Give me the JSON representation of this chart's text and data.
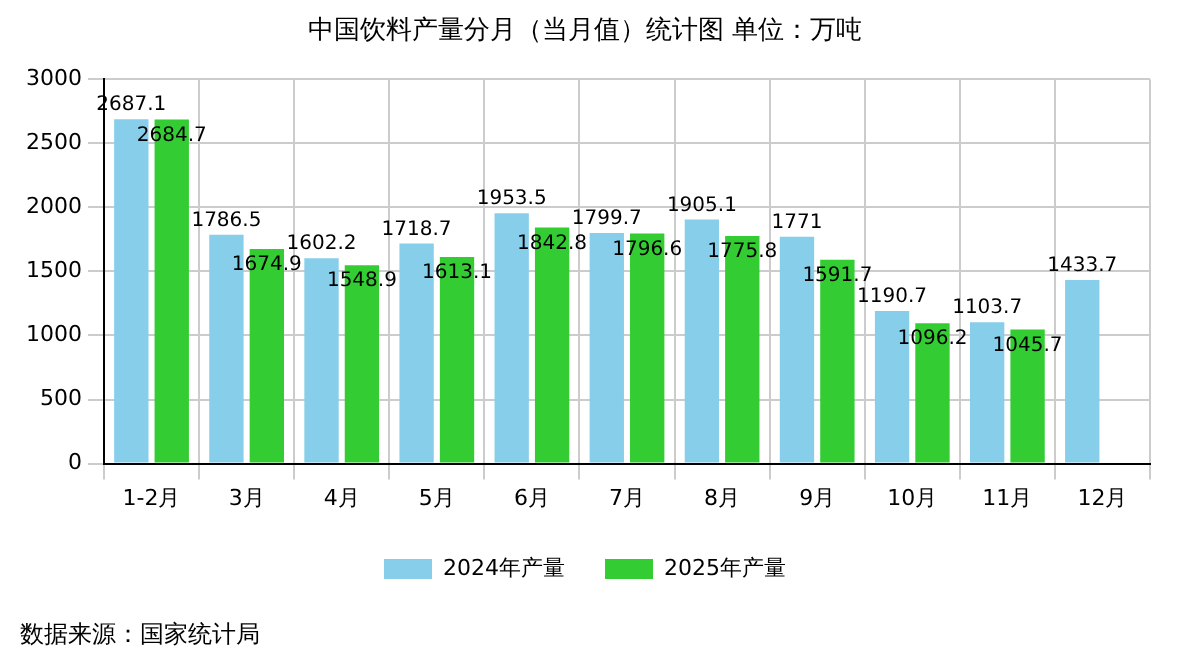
{
  "chart_data": {
    "type": "bar",
    "title": "中国饮料产量分月（当月值）统计图 单位：万吨",
    "categories": [
      "1-2月",
      "3月",
      "4月",
      "5月",
      "6月",
      "7月",
      "8月",
      "9月",
      "10月",
      "11月",
      "12月"
    ],
    "series": [
      {
        "name": "2024年产量",
        "color": "#87ceeb",
        "values": [
          2687.1,
          1786.5,
          1602.2,
          1718.7,
          1953.5,
          1799.7,
          1905.1,
          1771,
          1190.7,
          1103.7,
          1433.7
        ]
      },
      {
        "name": "2025年产量",
        "color": "#33cc33",
        "values": [
          2684.7,
          1674.9,
          1548.9,
          1613.1,
          1842.8,
          1796.6,
          1775.8,
          1591.7,
          1096.2,
          1045.7,
          null
        ]
      }
    ],
    "ylim": [
      0,
      3000
    ],
    "yticks": [
      0,
      500,
      1000,
      1500,
      2000,
      2500,
      3000
    ],
    "grid": true,
    "legend": "bottom",
    "data_labels": true,
    "annotations": [
      "数据来源：国家统计局"
    ]
  }
}
